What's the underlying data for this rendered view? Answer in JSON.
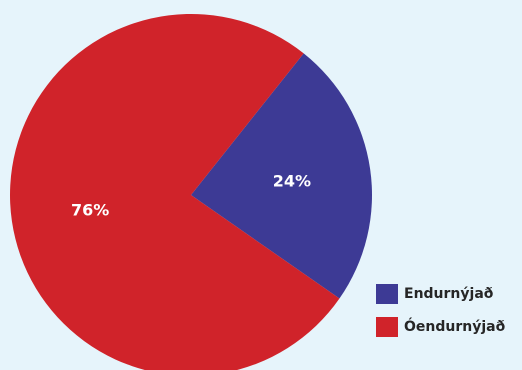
{
  "chart_data": {
    "type": "pie",
    "slices": [
      {
        "name": "Endurnýjað",
        "value": 24,
        "label": "24%",
        "color": "#3d3a95"
      },
      {
        "name": "Óendurnýjað",
        "value": 76,
        "label": "76%",
        "color": "#d0232a"
      }
    ],
    "start_angle_deg": -51.5,
    "direction": "clockwise",
    "legend_position": "bottom-right",
    "title": ""
  },
  "legend": {
    "items": [
      {
        "label": "Endurnýjað",
        "color": "#3d3a95"
      },
      {
        "label": "Óendurnýjað",
        "color": "#d0232a"
      }
    ]
  },
  "colors": {
    "background": "#e6f4fb"
  }
}
